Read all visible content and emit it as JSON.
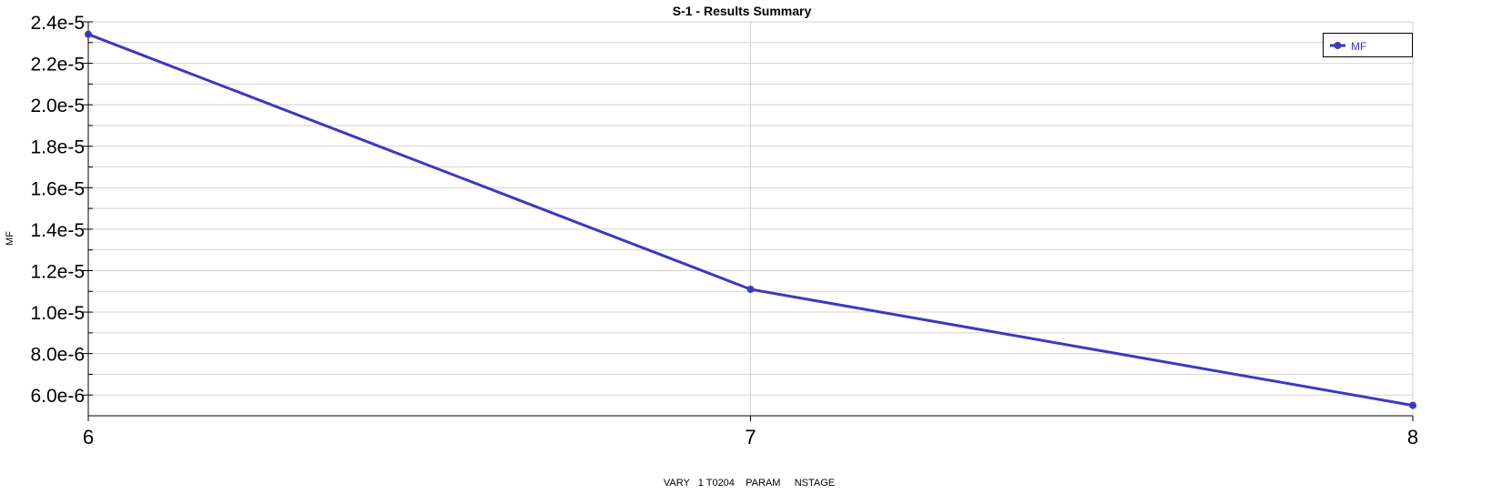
{
  "chart_data": {
    "type": "line",
    "title": "S-1 - Results Summary",
    "xlabel": "VARY   1 T0204    PARAM     NSTAGE",
    "ylabel": "MF",
    "x": [
      6,
      7,
      8
    ],
    "x_ticks": [
      "6",
      "7",
      "8"
    ],
    "xlim": [
      6,
      8
    ],
    "y_ticks": [
      "6.0e-6",
      "8.0e-6",
      "1.0e-5",
      "1.2e-5",
      "1.4e-5",
      "1.6e-5",
      "1.8e-5",
      "2.0e-5",
      "2.2e-5",
      "2.4e-5"
    ],
    "y_tick_values": [
      6e-06,
      8e-06,
      1e-05,
      1.2e-05,
      1.4e-05,
      1.6e-05,
      1.8e-05,
      2e-05,
      2.2e-05,
      2.4e-05
    ],
    "ylim": [
      5e-06,
      2.4e-05
    ],
    "series": [
      {
        "name": "MF",
        "color": "#3a3ac0",
        "values": [
          2.34e-05,
          1.11e-05,
          5.5e-06
        ]
      }
    ],
    "legend": {
      "position": "top-right"
    },
    "grid": {
      "horizontal": true,
      "vertical": true
    }
  }
}
